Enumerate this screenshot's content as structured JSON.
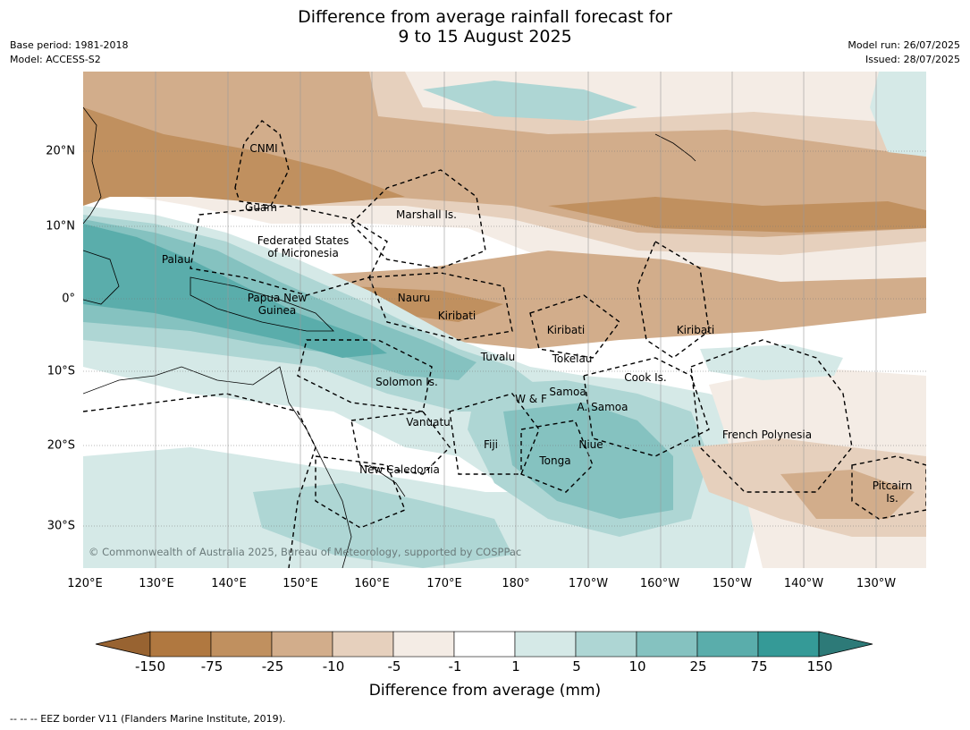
{
  "title": {
    "line1": "Difference from average rainfall forecast for",
    "line2": "9 to 15 August 2025"
  },
  "meta": {
    "base_period": "Base period: 1981-2018",
    "model": "Model: ACCESS-S2",
    "model_run": "Model run: 26/07/2025",
    "issued": "Issued: 28/07/2025"
  },
  "map": {
    "lon_labels": [
      "120°E",
      "130°E",
      "140°E",
      "150°E",
      "160°E",
      "170°E",
      "180°",
      "170°W",
      "160°W",
      "150°W",
      "140°W",
      "130°W"
    ],
    "lat_labels": [
      "20°N",
      "10°N",
      "0°",
      "10°S",
      "20°S",
      "30°S"
    ],
    "places": [
      "CNMI",
      "Guam",
      "Marshall Is.",
      "Federated States",
      "of Micronesia",
      "Palau",
      "Papua New",
      "Guinea",
      "Nauru",
      "Kiribati",
      "Kiribati",
      "Kiribati",
      "Tuvalu",
      "Tokelau",
      "Solomon Is.",
      "Cook Is.",
      "W & F",
      "Samoa",
      "A. Samoa",
      "Vanuatu",
      "Fiji",
      "Niue",
      "Tonga",
      "French Polynesia",
      "New Caledonia",
      "Pitcairn",
      "Is."
    ],
    "copyright": "© Commonwealth of Australia 2025, Bureau of Meteorology, supported by COSPPac",
    "colors": {
      "brown_dark": "#c0905f",
      "brown_mid": "#d2ad8b",
      "brown_light": "#e6d0bd",
      "brown_faint": "#f4ece5",
      "teal_faint": "#d5e9e7",
      "teal_light": "#aed6d4",
      "teal_mid": "#85c2c0",
      "teal_strong": "#5aadab"
    }
  },
  "colorbar": {
    "ticks": [
      "-150",
      "-75",
      "-25",
      "-10",
      "-5",
      "-1",
      "1",
      "5",
      "10",
      "25",
      "75",
      "150"
    ],
    "colors": [
      "#986331",
      "#b07840",
      "#c0905f",
      "#d2ad8b",
      "#e6d0bd",
      "#f4ece5",
      "#ffffff",
      "#d5e9e7",
      "#aed6d4",
      "#85c2c0",
      "#5aadab",
      "#359a97",
      "#2d7a78"
    ],
    "label": "Difference from average (mm)"
  },
  "footnote": "--  --  -- EEZ border V11 (Flanders Marine Institute, 2019)."
}
